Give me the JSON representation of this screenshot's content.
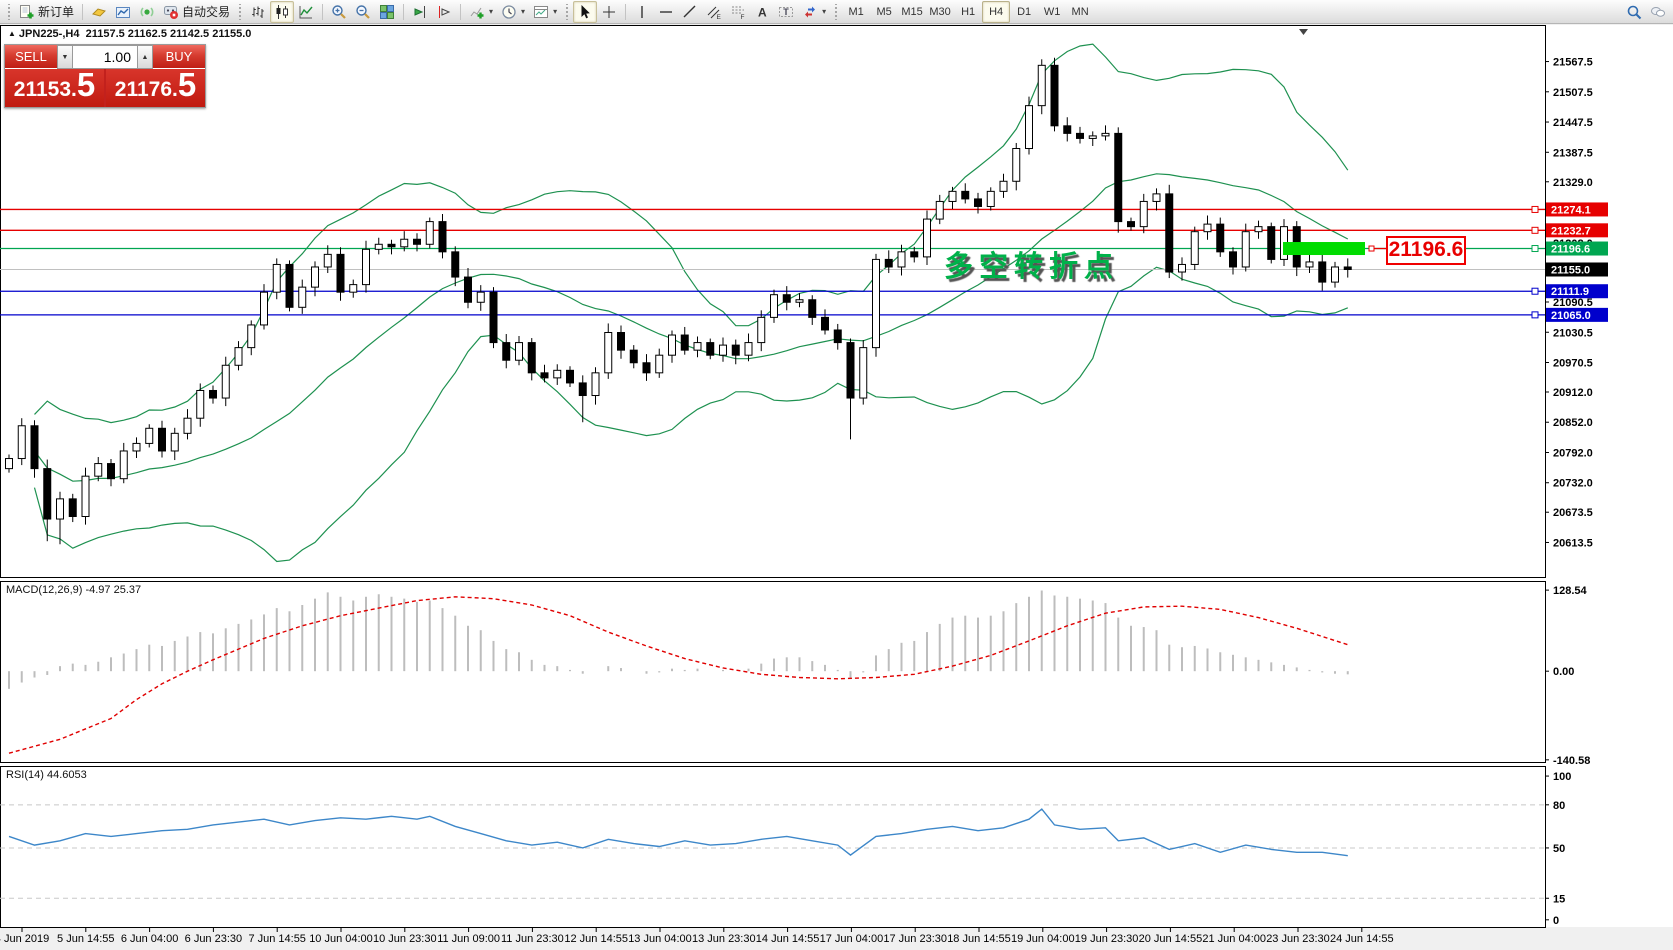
{
  "toolbar": {
    "new_order_label": "新订单",
    "autotrading_label": "自动交易",
    "timeframes": [
      "M1",
      "M5",
      "M15",
      "M30",
      "H1",
      "H4",
      "D1",
      "W1",
      "MN"
    ],
    "active_timeframe": "H4",
    "items": [
      {
        "type": "dots"
      },
      {
        "type": "button",
        "name": "new-order",
        "icon": "new-order-icon",
        "label_key": "new_order_label"
      },
      {
        "type": "sep"
      },
      {
        "type": "button",
        "name": "market-watch",
        "icon": "market-watch-icon"
      },
      {
        "type": "button",
        "name": "new-chart",
        "icon": "new-chart-icon"
      },
      {
        "type": "button",
        "name": "signals",
        "icon": "signals-icon"
      },
      {
        "type": "button",
        "name": "autotrading",
        "icon": "autotrading-icon",
        "label_key": "autotrading_label"
      },
      {
        "type": "dots"
      },
      {
        "type": "button",
        "name": "chart-bars",
        "icon": "bar-chart-icon"
      },
      {
        "type": "button",
        "name": "chart-candles",
        "icon": "candlestick-icon",
        "active": true
      },
      {
        "type": "button",
        "name": "chart-line",
        "icon": "line-chart-icon"
      },
      {
        "type": "sep"
      },
      {
        "type": "button",
        "name": "zoom-in",
        "icon": "zoom-in-icon"
      },
      {
        "type": "button",
        "name": "zoom-out",
        "icon": "zoom-out-icon"
      },
      {
        "type": "button",
        "name": "tile-windows",
        "icon": "tile-windows-icon"
      },
      {
        "type": "sep"
      },
      {
        "type": "button",
        "name": "auto-scroll",
        "icon": "auto-scroll-icon"
      },
      {
        "type": "button",
        "name": "chart-shift",
        "icon": "chart-shift-icon"
      },
      {
        "type": "sep"
      },
      {
        "type": "button",
        "name": "indicators",
        "icon": "indicators-icon",
        "caret": true
      },
      {
        "type": "button",
        "name": "periods",
        "icon": "clock-icon",
        "caret": true
      },
      {
        "type": "button",
        "name": "templates",
        "icon": "templates-icon",
        "caret": true
      },
      {
        "type": "dots"
      },
      {
        "type": "button",
        "name": "cursor",
        "icon": "cursor-icon",
        "active": true
      },
      {
        "type": "button",
        "name": "crosshair",
        "icon": "crosshair-icon"
      },
      {
        "type": "sep"
      },
      {
        "type": "button",
        "name": "vertical-line",
        "icon": "vertical-line-icon"
      },
      {
        "type": "button",
        "name": "horizontal-line",
        "icon": "horizontal-line-icon"
      },
      {
        "type": "button",
        "name": "trendline",
        "icon": "trendline-icon"
      },
      {
        "type": "button",
        "name": "equidistant-channel",
        "icon": "channel-icon"
      },
      {
        "type": "button",
        "name": "fibonacci",
        "icon": "fibonacci-icon"
      },
      {
        "type": "button",
        "name": "text",
        "icon": "text-icon"
      },
      {
        "type": "button",
        "name": "text-label",
        "icon": "label-icon"
      },
      {
        "type": "button",
        "name": "arrows",
        "icon": "arrows-icon",
        "caret": true
      },
      {
        "type": "dots"
      },
      {
        "type": "timeframes"
      },
      {
        "type": "spacer"
      },
      {
        "type": "button",
        "name": "search",
        "icon": "search-icon"
      },
      {
        "type": "button",
        "name": "chat",
        "icon": "chat-icon"
      }
    ]
  },
  "symbol_bar": {
    "marker": "▲",
    "symbol": "JPN225-,H4",
    "ohlc": "21157.5 21162.5 21142.5 21155.0"
  },
  "trade_panel": {
    "sell_label": "SELL",
    "buy_label": "BUY",
    "volume": "1.00",
    "sell_price_main": "21153",
    "sell_price_big": "5",
    "buy_price_main": "21176",
    "buy_price_big": "5"
  },
  "annotation": {
    "text": "多空转折点",
    "color": "#00b14a"
  },
  "price_flag": {
    "label": "21196.6",
    "color": "#e80000"
  },
  "chart_data": {
    "type": "candlestick",
    "title": "JPN225-,H4",
    "main": {
      "first_open": 20760,
      "closes": [
        20780,
        20845,
        20760,
        20660,
        20700,
        20665,
        20745,
        20770,
        20740,
        20795,
        20810,
        20840,
        20795,
        20830,
        20860,
        20915,
        20900,
        20965,
        21000,
        21045,
        21110,
        21165,
        21080,
        21120,
        21160,
        21185,
        21110,
        21125,
        21195,
        21205,
        21200,
        21215,
        21205,
        21250,
        21190,
        21140,
        21090,
        21110,
        21010,
        20975,
        21010,
        20950,
        20940,
        20955,
        20930,
        20905,
        20950,
        21030,
        20995,
        20970,
        20950,
        20985,
        21025,
        20995,
        21010,
        20985,
        21005,
        20985,
        21010,
        21060,
        21105,
        21090,
        21095,
        21060,
        21035,
        21010,
        20900,
        21000,
        21175,
        21160,
        21190,
        21180,
        21255,
        21290,
        21310,
        21295,
        21280,
        21310,
        21330,
        21395,
        21480,
        21560,
        21440,
        21425,
        21415,
        21420,
        21425,
        21250,
        21240,
        21290,
        21305,
        21150,
        21165,
        21230,
        21245,
        21190,
        21160,
        21230,
        21240,
        21175,
        21240,
        21160,
        21170,
        21130,
        21160,
        21155
      ],
      "wick_overrides": {
        "3": {
          "low": 20616
        },
        "4": {
          "low": 20610
        },
        "45": {
          "low": 20852
        },
        "66": {
          "low": 20818
        },
        "81": {
          "high": 21572
        },
        "82": {
          "high": 21575
        },
        "87": {
          "low": 21228
        }
      },
      "bollinger": {
        "period": 20,
        "deviation": 2,
        "color": "#1e9150"
      },
      "y_range": [
        20545,
        21640
      ],
      "y_ticks": [
        "21567.5",
        "21507.5",
        "21447.5",
        "21387.5",
        "21329.0",
        "21269.0",
        "21208.0",
        "21149.0",
        "21090.5",
        "21030.5",
        "20970.5",
        "20912.0",
        "20852.0",
        "20792.0",
        "20732.0",
        "20673.5",
        "20613.5"
      ],
      "hlines": [
        {
          "price": 21274.1,
          "label": "21274.1",
          "color": "#e60000"
        },
        {
          "price": 21232.7,
          "label": "21232.7",
          "color": "#e60000"
        },
        {
          "price": 21196.6,
          "label": "21196.6",
          "color": "#00a651"
        },
        {
          "price": 21111.9,
          "label": "21111.9",
          "color": "#0000cc"
        },
        {
          "price": 21065.0,
          "label": "21065.0",
          "color": "#0000cc"
        }
      ],
      "current_price": {
        "value": 21155.0,
        "label": "21155.0",
        "line_color": "#c0c0c0",
        "box_color": "#000000"
      },
      "highlight_bar": {
        "price": 21196.6,
        "color": "#00dc00"
      }
    },
    "macd": {
      "label": "MACD(12,26,9) -4.97 25.37",
      "axis_ticks": [
        "128.54",
        "0.00",
        "-140.58"
      ],
      "v_range": [
        -144,
        143
      ],
      "histogram_color": "#bdbdbd",
      "signal_color": "#e00000",
      "histogram": [
        -28,
        -18,
        -10,
        -6,
        8,
        12,
        10,
        15,
        22,
        28,
        35,
        42,
        40,
        48,
        55,
        62,
        60,
        68,
        75,
        82,
        90,
        100,
        95,
        105,
        115,
        125,
        118,
        112,
        118,
        122,
        118,
        115,
        110,
        112,
        100,
        88,
        72,
        65,
        48,
        35,
        30,
        18,
        10,
        8,
        2,
        -4,
        0,
        8,
        5,
        0,
        -4,
        -2,
        4,
        2,
        4,
        0,
        2,
        0,
        4,
        12,
        20,
        22,
        22,
        16,
        10,
        2,
        -12,
        -2,
        25,
        35,
        45,
        48,
        62,
        75,
        85,
        88,
        85,
        88,
        95,
        108,
        118,
        128,
        120,
        118,
        115,
        112,
        108,
        85,
        72,
        70,
        65,
        42,
        38,
        40,
        36,
        30,
        26,
        22,
        18,
        14,
        10,
        6,
        2,
        -2,
        -4,
        -5
      ],
      "signal_anchors": [
        [
          0,
          -130
        ],
        [
          4,
          -108
        ],
        [
          8,
          -75
        ],
        [
          10,
          -45
        ],
        [
          12,
          -20
        ],
        [
          14,
          0
        ],
        [
          16,
          18
        ],
        [
          18,
          35
        ],
        [
          20,
          52
        ],
        [
          23,
          72
        ],
        [
          26,
          88
        ],
        [
          29,
          100
        ],
        [
          32,
          112
        ],
        [
          35,
          118
        ],
        [
          38,
          115
        ],
        [
          41,
          105
        ],
        [
          44,
          88
        ],
        [
          47,
          62
        ],
        [
          50,
          40
        ],
        [
          53,
          20
        ],
        [
          56,
          5
        ],
        [
          59,
          -5
        ],
        [
          62,
          -10
        ],
        [
          65,
          -12
        ],
        [
          68,
          -10
        ],
        [
          71,
          -5
        ],
        [
          74,
          8
        ],
        [
          77,
          25
        ],
        [
          80,
          48
        ],
        [
          83,
          72
        ],
        [
          86,
          92
        ],
        [
          89,
          102
        ],
        [
          92,
          103
        ],
        [
          95,
          98
        ],
        [
          98,
          85
        ],
        [
          101,
          68
        ],
        [
          103,
          55
        ],
        [
          105,
          42
        ]
      ]
    },
    "rsi": {
      "label": "RSI(14) 44.6053",
      "axis_ticks": [
        "100",
        "80",
        "50",
        "15",
        "0"
      ],
      "levels": [
        80,
        50,
        15
      ],
      "v_range": [
        -5,
        107
      ],
      "line_color": "#3d87c9",
      "anchors": [
        [
          0,
          58
        ],
        [
          2,
          52
        ],
        [
          4,
          55
        ],
        [
          6,
          60
        ],
        [
          8,
          58
        ],
        [
          10,
          60
        ],
        [
          12,
          62
        ],
        [
          14,
          63
        ],
        [
          16,
          66
        ],
        [
          18,
          68
        ],
        [
          20,
          70
        ],
        [
          22,
          66
        ],
        [
          24,
          69
        ],
        [
          26,
          71
        ],
        [
          28,
          70
        ],
        [
          30,
          72
        ],
        [
          32,
          70
        ],
        [
          33,
          72
        ],
        [
          35,
          65
        ],
        [
          37,
          60
        ],
        [
          39,
          55
        ],
        [
          41,
          52
        ],
        [
          43,
          54
        ],
        [
          45,
          50
        ],
        [
          47,
          56
        ],
        [
          49,
          53
        ],
        [
          51,
          51
        ],
        [
          53,
          55
        ],
        [
          55,
          52
        ],
        [
          57,
          53
        ],
        [
          59,
          56
        ],
        [
          61,
          58
        ],
        [
          63,
          55
        ],
        [
          65,
          52
        ],
        [
          66,
          45
        ],
        [
          68,
          58
        ],
        [
          70,
          60
        ],
        [
          72,
          63
        ],
        [
          74,
          65
        ],
        [
          76,
          62
        ],
        [
          78,
          64
        ],
        [
          80,
          70
        ],
        [
          81,
          77
        ],
        [
          82,
          66
        ],
        [
          84,
          63
        ],
        [
          86,
          64
        ],
        [
          87,
          55
        ],
        [
          89,
          57
        ],
        [
          91,
          49
        ],
        [
          93,
          53
        ],
        [
          95,
          47
        ],
        [
          97,
          52
        ],
        [
          99,
          49
        ],
        [
          101,
          47
        ],
        [
          103,
          47
        ],
        [
          105,
          44.6
        ]
      ]
    },
    "x_labels": [
      "4 Jun 2019",
      "5 Jun 14:55",
      "6 Jun 04:00",
      "6 Jun 23:30",
      "7 Jun 14:55",
      "10 Jun 04:00",
      "10 Jun 23:30",
      "11 Jun 09:00",
      "11 Jun 23:30",
      "12 Jun 14:55",
      "13 Jun 04:00",
      "13 Jun 23:30",
      "14 Jun 14:55",
      "17 Jun 04:00",
      "17 Jun 23:30",
      "18 Jun 14:55",
      "19 Jun 04:00",
      "19 Jun 23:30",
      "20 Jun 14:55",
      "21 Jun 04:00",
      "23 Jun 23:30",
      "24 Jun 14:55"
    ]
  }
}
